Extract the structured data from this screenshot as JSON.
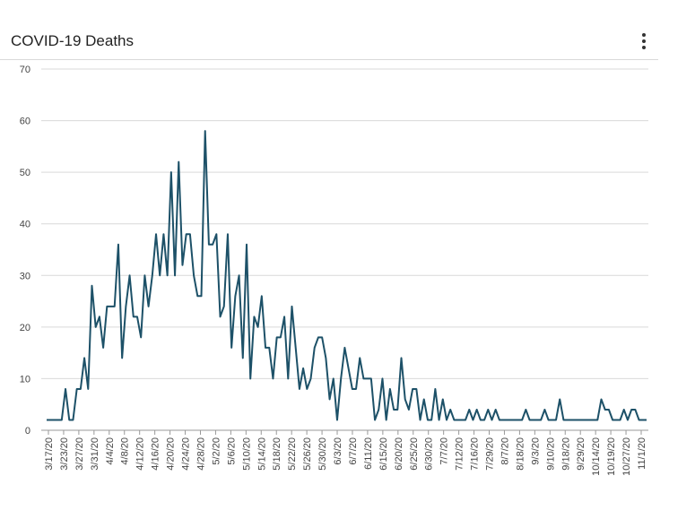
{
  "header": {
    "title": "COVID-19 Deaths",
    "menu_icon": "more-vertical-icon"
  },
  "colors": {
    "line": "#1d5168",
    "grid": "#d9d9d9",
    "axis_text": "#444444"
  },
  "chart_data": {
    "type": "line",
    "title": "COVID-19 Deaths",
    "xlabel": "",
    "ylabel": "",
    "ylim": [
      0,
      70
    ],
    "yticks": [
      0,
      10,
      20,
      30,
      40,
      50,
      60,
      70
    ],
    "grid": true,
    "legend": "none",
    "x_tick_labels": [
      "3/17/20",
      "3/23/20",
      "3/27/20",
      "3/31/20",
      "4/4/20",
      "4/8/20",
      "4/12/20",
      "4/16/20",
      "4/20/20",
      "4/24/20",
      "4/28/20",
      "5/2/20",
      "5/6/20",
      "5/10/20",
      "5/14/20",
      "5/18/20",
      "5/22/20",
      "5/26/20",
      "5/30/20",
      "6/3/20",
      "6/7/20",
      "6/11/20",
      "6/15/20",
      "6/20/20",
      "6/25/20",
      "6/30/20",
      "7/7/20",
      "7/12/20",
      "7/16/20",
      "7/29/20",
      "8/7/20",
      "8/18/20",
      "9/3/20",
      "9/10/20",
      "9/18/20",
      "9/29/20",
      "10/14/20",
      "10/19/20",
      "10/27/20",
      "11/1/20"
    ],
    "series": [
      {
        "name": "Deaths",
        "values": [
          2,
          2,
          2,
          2,
          2,
          8,
          2,
          2,
          8,
          8,
          14,
          8,
          28,
          20,
          22,
          16,
          24,
          24,
          24,
          36,
          14,
          24,
          30,
          22,
          22,
          18,
          30,
          24,
          30,
          38,
          30,
          38,
          30,
          50,
          30,
          52,
          32,
          38,
          38,
          30,
          26,
          26,
          58,
          36,
          36,
          38,
          22,
          24,
          38,
          16,
          26,
          30,
          14,
          36,
          10,
          22,
          20,
          26,
          16,
          16,
          10,
          18,
          18,
          22,
          10,
          24,
          16,
          8,
          12,
          8,
          10,
          16,
          18,
          18,
          14,
          6,
          10,
          2,
          10,
          16,
          12,
          8,
          8,
          14,
          10,
          10,
          10,
          2,
          4,
          10,
          2,
          8,
          4,
          4,
          14,
          6,
          4,
          8,
          8,
          2,
          6,
          2,
          2,
          8,
          2,
          6,
          2,
          4,
          2,
          2,
          2,
          2,
          4,
          2,
          4,
          2,
          2,
          4,
          2,
          4,
          2,
          2,
          2,
          2,
          2,
          2,
          2,
          4,
          2,
          2,
          2,
          2,
          4,
          2,
          2,
          2,
          6,
          2,
          2,
          2,
          2,
          2,
          2,
          2,
          2,
          2,
          2,
          6,
          4,
          4,
          2,
          2,
          2,
          4,
          2,
          4,
          4,
          2,
          2,
          2
        ]
      }
    ]
  }
}
